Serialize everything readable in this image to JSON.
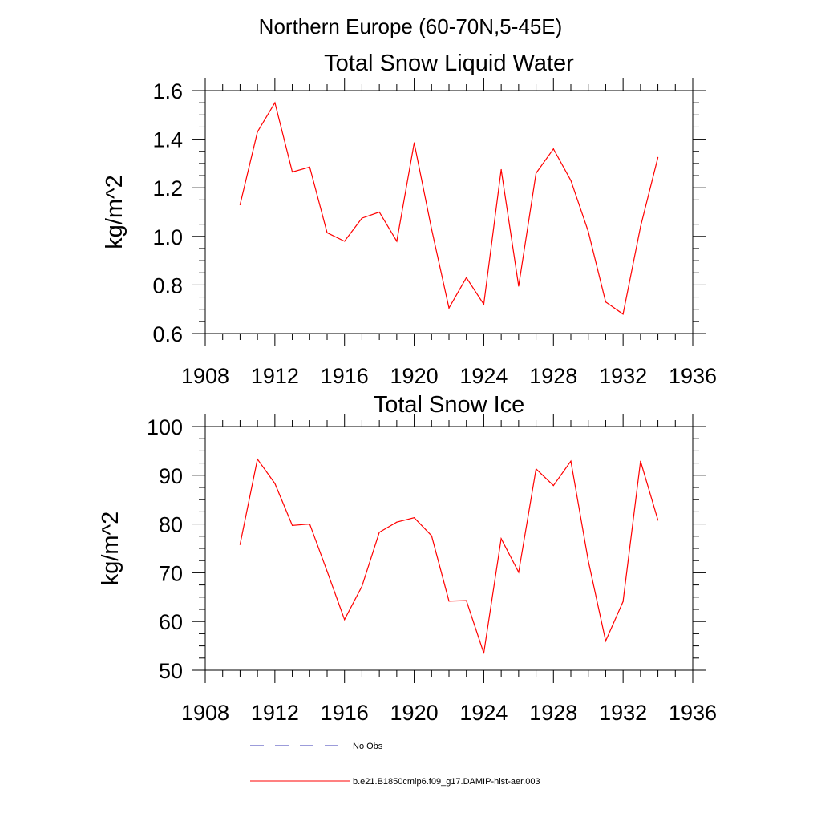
{
  "figure_title": "Northern Europe (60-70N,5-45E)",
  "colors": {
    "model": "#ff0000",
    "obs": "#3a3ab4",
    "axis": "#000000"
  },
  "legend": {
    "position": "below-plots",
    "items": [
      {
        "label": "No Obs",
        "style": "dashed",
        "color": "#3a3ab4"
      },
      {
        "label": "b.e21.B1850cmip6.f09_g17.DAMIP-hist-aer.003",
        "style": "solid",
        "color": "#ff0000"
      }
    ]
  },
  "chart_data": [
    {
      "type": "line",
      "title": "Total Snow Liquid Water",
      "xlabel": "",
      "ylabel": "kg/m^2",
      "xlim": [
        1908,
        1936
      ],
      "ylim": [
        0.6,
        1.6
      ],
      "xticks": [
        "1908",
        "1912",
        "1916",
        "1920",
        "1924",
        "1928",
        "1932",
        "1936"
      ],
      "yticks": [
        "0.6",
        "0.8",
        "1.0",
        "1.2",
        "1.4",
        "1.6"
      ],
      "x": [
        1910,
        1911,
        1912,
        1913,
        1914,
        1915,
        1916,
        1917,
        1918,
        1919,
        1920,
        1921,
        1922,
        1923,
        1924,
        1925,
        1926,
        1927,
        1928,
        1929,
        1930,
        1931,
        1932,
        1933,
        1934
      ],
      "series": [
        {
          "name": "b.e21.B1850cmip6.f09_g17.DAMIP-hist-aer.003",
          "values": [
            1.13,
            1.43,
            1.55,
            1.265,
            1.285,
            1.015,
            0.98,
            1.075,
            1.1,
            0.98,
            1.385,
            1.03,
            0.705,
            0.83,
            0.72,
            1.275,
            0.795,
            1.26,
            1.36,
            1.23,
            1.02,
            0.73,
            0.68,
            1.04,
            1.325
          ]
        }
      ]
    },
    {
      "type": "line",
      "title": "Total Snow Ice",
      "xlabel": "",
      "ylabel": "kg/m^2",
      "xlim": [
        1908,
        1936
      ],
      "ylim": [
        50,
        100
      ],
      "xticks": [
        "1908",
        "1912",
        "1916",
        "1920",
        "1924",
        "1928",
        "1932",
        "1936"
      ],
      "yticks": [
        "50",
        "60",
        "70",
        "80",
        "90",
        "100"
      ],
      "x": [
        1910,
        1911,
        1912,
        1913,
        1914,
        1915,
        1916,
        1917,
        1918,
        1919,
        1920,
        1921,
        1922,
        1923,
        1924,
        1925,
        1926,
        1927,
        1928,
        1929,
        1930,
        1931,
        1932,
        1933,
        1934
      ],
      "series": [
        {
          "name": "b.e21.B1850cmip6.f09_g17.DAMIP-hist-aer.003",
          "values": [
            75.8,
            93.3,
            88.3,
            79.7,
            80.0,
            70.3,
            60.4,
            67.2,
            78.3,
            80.4,
            81.3,
            77.6,
            64.2,
            64.3,
            53.5,
            77.0,
            70.1,
            91.3,
            87.9,
            92.9,
            72.5,
            56.0,
            64.1,
            92.9,
            80.8
          ]
        }
      ]
    }
  ]
}
